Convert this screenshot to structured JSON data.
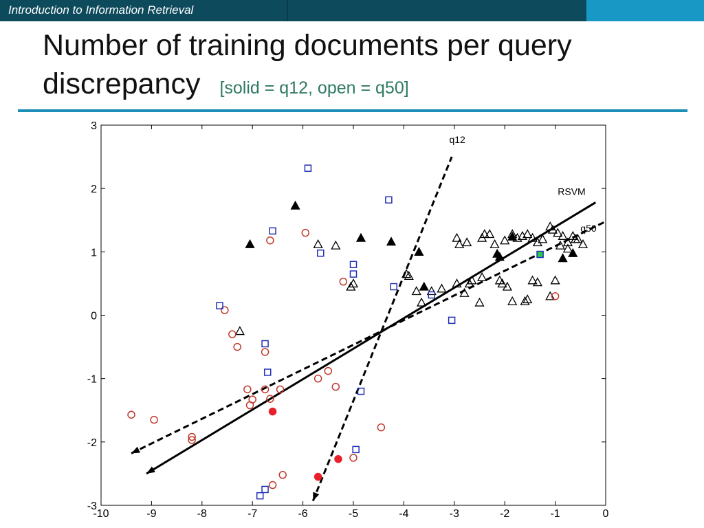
{
  "header": {
    "course_title": "Introduction to Information Retrieval"
  },
  "slide": {
    "title": "Number of training documents per query discrepancy",
    "title_line1": "Number of training documents per query",
    "title_line2": "discrepancy",
    "subtitle": "[solid = q12, open = q50]"
  },
  "colors": {
    "bar_dark": "#0d4a5c",
    "bar_light": "#1898c4",
    "rule": "#1c8fb6",
    "subtitle": "#2f7a64",
    "q12": "#000000",
    "q50": "#c0392b",
    "square": "#1f2fb8",
    "green": "#2ecc40"
  },
  "chart_data": {
    "type": "scatter",
    "xlim": [
      -10,
      0
    ],
    "ylim": [
      -3,
      3
    ],
    "xticks": [
      -10,
      -9,
      -8,
      -7,
      -6,
      -5,
      -4,
      -3,
      -2,
      -1,
      0
    ],
    "yticks": [
      -3,
      -2,
      -1,
      0,
      1,
      2,
      3
    ],
    "grid": false,
    "series": [
      {
        "marker": "triangle",
        "fill": "solid",
        "color": "#000000",
        "points": [
          [
            -7.05,
            1.12
          ],
          [
            -6.15,
            1.73
          ],
          [
            -4.85,
            1.22
          ],
          [
            -4.25,
            1.16
          ],
          [
            -3.7,
            1.0
          ],
          [
            -2.15,
            0.97
          ],
          [
            -2.1,
            0.92
          ],
          [
            -1.85,
            1.24
          ],
          [
            -0.65,
            0.98
          ],
          [
            -0.85,
            0.9
          ],
          [
            -3.6,
            0.45
          ]
        ]
      },
      {
        "marker": "triangle",
        "fill": "open",
        "color": "#000000",
        "points": [
          [
            -5.7,
            1.12
          ],
          [
            -5.35,
            1.1
          ],
          [
            -5.0,
            0.5
          ],
          [
            -5.05,
            0.45
          ],
          [
            -7.25,
            -0.25
          ],
          [
            -3.95,
            0.65
          ],
          [
            -3.9,
            0.62
          ],
          [
            -3.75,
            0.38
          ],
          [
            -3.65,
            0.2
          ],
          [
            -3.45,
            0.38
          ],
          [
            -3.25,
            0.42
          ],
          [
            -2.95,
            1.22
          ],
          [
            -2.9,
            1.12
          ],
          [
            -2.75,
            1.15
          ],
          [
            -2.95,
            0.5
          ],
          [
            -2.8,
            0.35
          ],
          [
            -2.7,
            0.5
          ],
          [
            -2.65,
            0.55
          ],
          [
            -2.45,
            1.22
          ],
          [
            -2.4,
            1.28
          ],
          [
            -2.3,
            1.28
          ],
          [
            -2.2,
            1.12
          ],
          [
            -2.1,
            0.55
          ],
          [
            -2.05,
            0.5
          ],
          [
            -1.95,
            0.45
          ],
          [
            -2.0,
            1.18
          ],
          [
            -1.85,
            1.28
          ],
          [
            -1.75,
            1.22
          ],
          [
            -1.65,
            1.25
          ],
          [
            -1.55,
            1.28
          ],
          [
            -1.45,
            1.22
          ],
          [
            -1.35,
            1.15
          ],
          [
            -1.25,
            1.2
          ],
          [
            -1.1,
            1.4
          ],
          [
            -1.05,
            1.35
          ],
          [
            -0.95,
            1.3
          ],
          [
            -0.85,
            1.25
          ],
          [
            -0.75,
            1.15
          ],
          [
            -0.65,
            1.25
          ],
          [
            -0.55,
            1.2
          ],
          [
            -0.45,
            1.12
          ],
          [
            -1.35,
            0.52
          ],
          [
            -1.45,
            0.55
          ],
          [
            -1.55,
            0.25
          ],
          [
            -1.6,
            0.22
          ],
          [
            -1.85,
            0.22
          ],
          [
            -2.45,
            0.6
          ],
          [
            -2.5,
            0.2
          ],
          [
            -1.1,
            0.3
          ],
          [
            -1.0,
            0.55
          ],
          [
            -0.9,
            1.1
          ],
          [
            -0.75,
            1.05
          ],
          [
            -0.6,
            1.2
          ]
        ]
      },
      {
        "marker": "circle",
        "fill": "solid",
        "color": "#e8202a",
        "points": [
          [
            -6.6,
            -1.52
          ],
          [
            -5.3,
            -2.27
          ],
          [
            -5.7,
            -2.55
          ]
        ]
      },
      {
        "marker": "circle",
        "fill": "open",
        "color": "#c0392b",
        "points": [
          [
            -9.4,
            -1.57
          ],
          [
            -8.95,
            -1.65
          ],
          [
            -8.2,
            -1.92
          ],
          [
            -8.2,
            -1.97
          ],
          [
            -7.55,
            0.08
          ],
          [
            -7.4,
            -0.3
          ],
          [
            -7.3,
            -0.5
          ],
          [
            -7.1,
            -1.17
          ],
          [
            -7.05,
            -1.42
          ],
          [
            -7.0,
            -1.33
          ],
          [
            -6.65,
            1.18
          ],
          [
            -6.75,
            -0.58
          ],
          [
            -6.75,
            -1.17
          ],
          [
            -6.65,
            -1.32
          ],
          [
            -6.45,
            -1.17
          ],
          [
            -6.6,
            -2.68
          ],
          [
            -6.4,
            -2.52
          ],
          [
            -5.95,
            1.3
          ],
          [
            -5.7,
            -1.0
          ],
          [
            -5.5,
            -0.88
          ],
          [
            -5.35,
            -1.13
          ],
          [
            -5.2,
            0.53
          ],
          [
            -5.0,
            -2.25
          ],
          [
            -4.45,
            -1.77
          ],
          [
            -1.0,
            0.3
          ]
        ]
      },
      {
        "marker": "square",
        "fill": "open",
        "color": "#1f2fb8",
        "points": [
          [
            -5.9,
            2.32
          ],
          [
            -4.3,
            1.82
          ],
          [
            -6.6,
            1.33
          ],
          [
            -5.65,
            0.98
          ],
          [
            -5.0,
            0.8
          ],
          [
            -5.0,
            0.65
          ],
          [
            -4.2,
            0.45
          ],
          [
            -3.45,
            0.32
          ],
          [
            -3.05,
            -0.08
          ],
          [
            -7.65,
            0.15
          ],
          [
            -6.75,
            -0.45
          ],
          [
            -6.7,
            -0.9
          ],
          [
            -4.85,
            -1.2
          ],
          [
            -4.95,
            -2.12
          ],
          [
            -6.75,
            -2.75
          ],
          [
            -6.85,
            -2.85
          ]
        ]
      },
      {
        "marker": "square",
        "fill": "solid",
        "color": "#2ecc40",
        "points": [
          [
            -1.3,
            0.96
          ]
        ]
      }
    ],
    "lines": [
      {
        "name": "RSVM",
        "style": "solid",
        "from": [
          -9.1,
          -2.5
        ],
        "to": [
          -0.2,
          1.78
        ]
      },
      {
        "name": "q50",
        "style": "dashed",
        "from": [
          -9.4,
          -2.18
        ],
        "to": [
          0.0,
          1.48
        ]
      },
      {
        "name": "q12",
        "style": "dashed",
        "from": [
          -5.8,
          -2.93
        ],
        "to": [
          -3.05,
          2.5
        ]
      }
    ],
    "annotations": [
      {
        "text": "q12",
        "at": [
          -3.1,
          2.72
        ]
      },
      {
        "text": "RSVM",
        "at": [
          -0.95,
          1.9
        ]
      },
      {
        "text": "q50",
        "at": [
          -0.5,
          1.32
        ]
      }
    ]
  }
}
